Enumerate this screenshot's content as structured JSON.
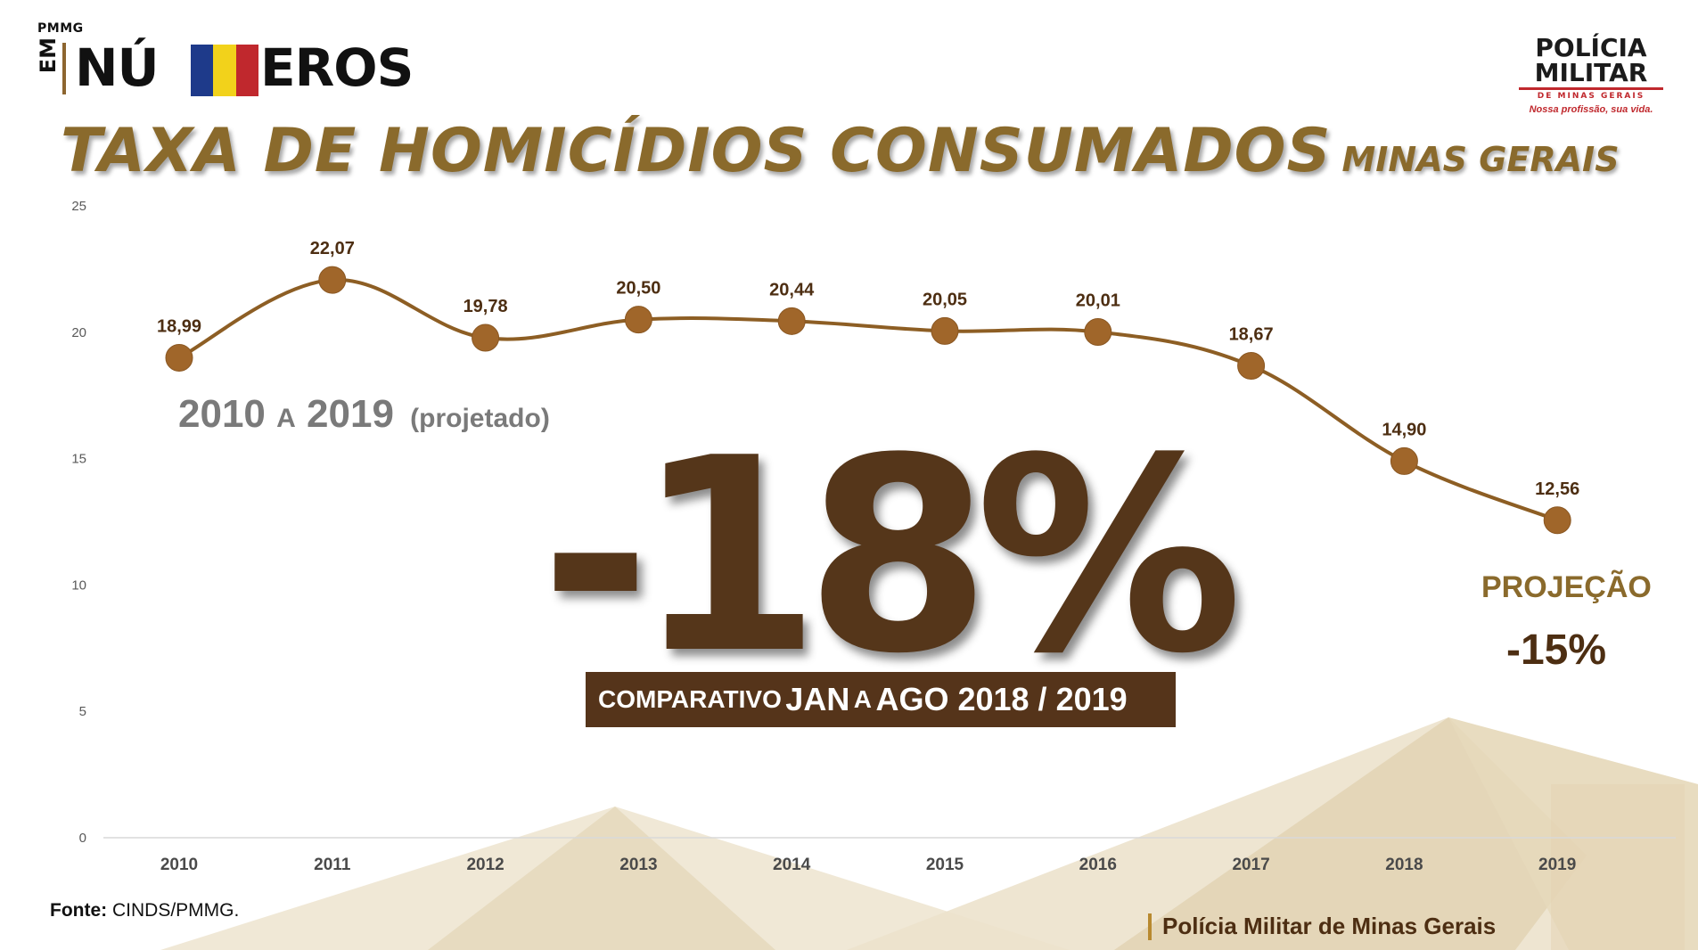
{
  "header": {
    "logo_left": {
      "prefix": "PMMG",
      "em": "EM",
      "text_start": "NÚ",
      "text_end": "EROS",
      "flag_colors": [
        "#1e3a8a",
        "#f2d21b",
        "#c0282d"
      ]
    },
    "logo_right": {
      "line1": "POLÍCIA",
      "line2": "MILITAR",
      "line3": "DE MINAS GERAIS",
      "tagline": "Nossa profissão, sua vida."
    }
  },
  "title": {
    "main": "TAXA DE HOMICÍDIOS CONSUMADOS",
    "region": "MINAS GERAIS"
  },
  "period": {
    "start": "2010",
    "connector": "A",
    "end": "2019",
    "note": "(projetado)"
  },
  "highlight": {
    "value": "-18%",
    "comparison_prefix": "COMPARATIVO",
    "comparison_rest_1": "JAN",
    "comparison_rest_2": "A",
    "comparison_rest_3": "AGO 2018 / 2019"
  },
  "projection": {
    "label": "PROJEÇÃO",
    "value": "-15%"
  },
  "source": {
    "label": "Fonte:",
    "value": "CINDS/PMMG."
  },
  "footer": {
    "brand": "Polícia Militar de Minas Gerais"
  },
  "colors": {
    "title": "#8a6a2c",
    "line": "#8d5e24",
    "marker": "#a0662a",
    "data_label": "#4d2e12",
    "big_value": "#55361a",
    "box": "#55341a",
    "background_shape": "#e9dcc0"
  },
  "chart_data": {
    "type": "line",
    "categories": [
      "2010",
      "2011",
      "2012",
      "2013",
      "2014",
      "2015",
      "2016",
      "2017",
      "2018",
      "2019"
    ],
    "series": [
      {
        "values": [
          18.99,
          22.07,
          19.78,
          20.5,
          20.44,
          20.05,
          20.01,
          18.67,
          14.9,
          12.56
        ],
        "labels": [
          "18,99",
          "22,07",
          "19,78",
          "20,50",
          "20,44",
          "20,05",
          "20,01",
          "18,67",
          "14,90",
          "12,56"
        ]
      }
    ],
    "yticks": [
      "0",
      "5",
      "10",
      "15",
      "20",
      "25"
    ],
    "ylim": [
      0,
      25
    ],
    "smooth": true,
    "grid": false,
    "legend": "none"
  }
}
